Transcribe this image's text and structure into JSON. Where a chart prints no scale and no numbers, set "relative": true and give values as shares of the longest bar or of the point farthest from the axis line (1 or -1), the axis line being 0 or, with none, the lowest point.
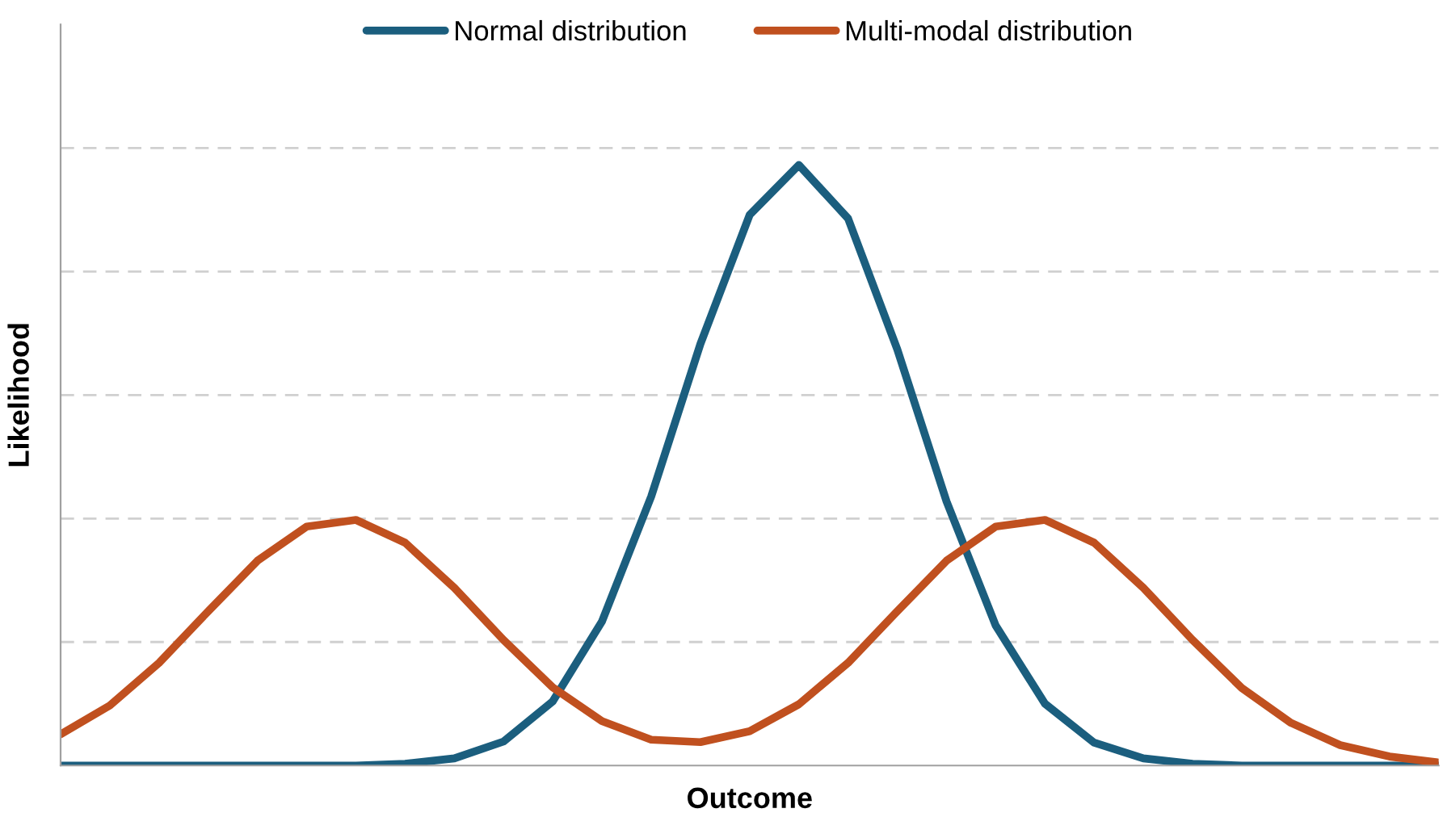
{
  "chart_data": {
    "type": "line",
    "relative": true,
    "xlabel": "Outcome",
    "ylabel": "Likelihood",
    "legend": "top",
    "grid": "y",
    "marker": "none",
    "line_style": "solid",
    "categories": [
      null,
      null,
      null,
      null,
      null,
      null,
      null,
      null,
      null,
      null,
      null,
      null,
      null,
      null,
      null,
      null,
      null,
      null,
      null,
      null,
      null,
      null,
      null,
      null,
      null,
      null,
      null,
      null,
      null
    ],
    "series": [
      {
        "name": "Normal distribution",
        "color": "#1b5e7e",
        "values": [
          0,
          0,
          0,
          0,
          0,
          0,
          0,
          0.003,
          0.012,
          0.04,
          0.107,
          0.24,
          0.448,
          0.702,
          0.917,
          1,
          0.911,
          0.693,
          0.44,
          0.233,
          0.103,
          0.038,
          0.012,
          0.003,
          0,
          0,
          0,
          0,
          0
        ]
      },
      {
        "name": "Multi-modal distribution",
        "color": "#c0501f",
        "values": [
          0.052,
          0.1,
          0.171,
          0.257,
          0.341,
          0.398,
          0.409,
          0.371,
          0.296,
          0.209,
          0.13,
          0.074,
          0.043,
          0.039,
          0.057,
          0.102,
          0.171,
          0.257,
          0.341,
          0.398,
          0.409,
          0.371,
          0.296,
          0.209,
          0.129,
          0.071,
          0.034,
          0.015,
          0.005
        ]
      }
    ]
  }
}
